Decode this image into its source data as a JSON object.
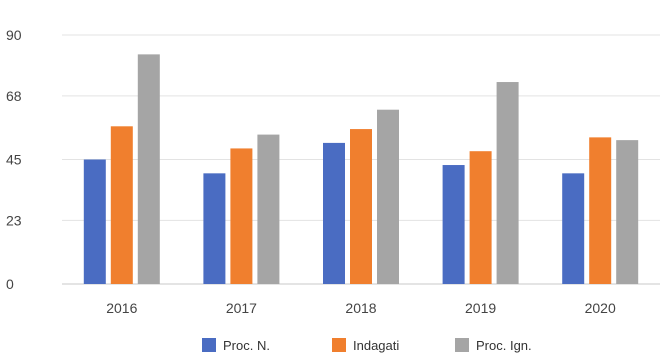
{
  "chart_data": {
    "type": "bar",
    "categories": [
      "2016",
      "2017",
      "2018",
      "2019",
      "2020"
    ],
    "series": [
      {
        "name": "Proc. N.",
        "color": "#4a6cc2",
        "values": [
          45,
          40,
          51,
          43,
          40
        ]
      },
      {
        "name": "Indagati",
        "color": "#f07f2e",
        "values": [
          57,
          49,
          56,
          48,
          53
        ]
      },
      {
        "name": "Proc. Ign.",
        "color": "#a5a5a5",
        "values": [
          83,
          54,
          63,
          73,
          52
        ]
      }
    ],
    "yticks": [
      "0",
      "23",
      "45",
      "68",
      "90"
    ],
    "ylim": [
      0,
      90
    ],
    "grid": true,
    "legend_position": "bottom"
  }
}
